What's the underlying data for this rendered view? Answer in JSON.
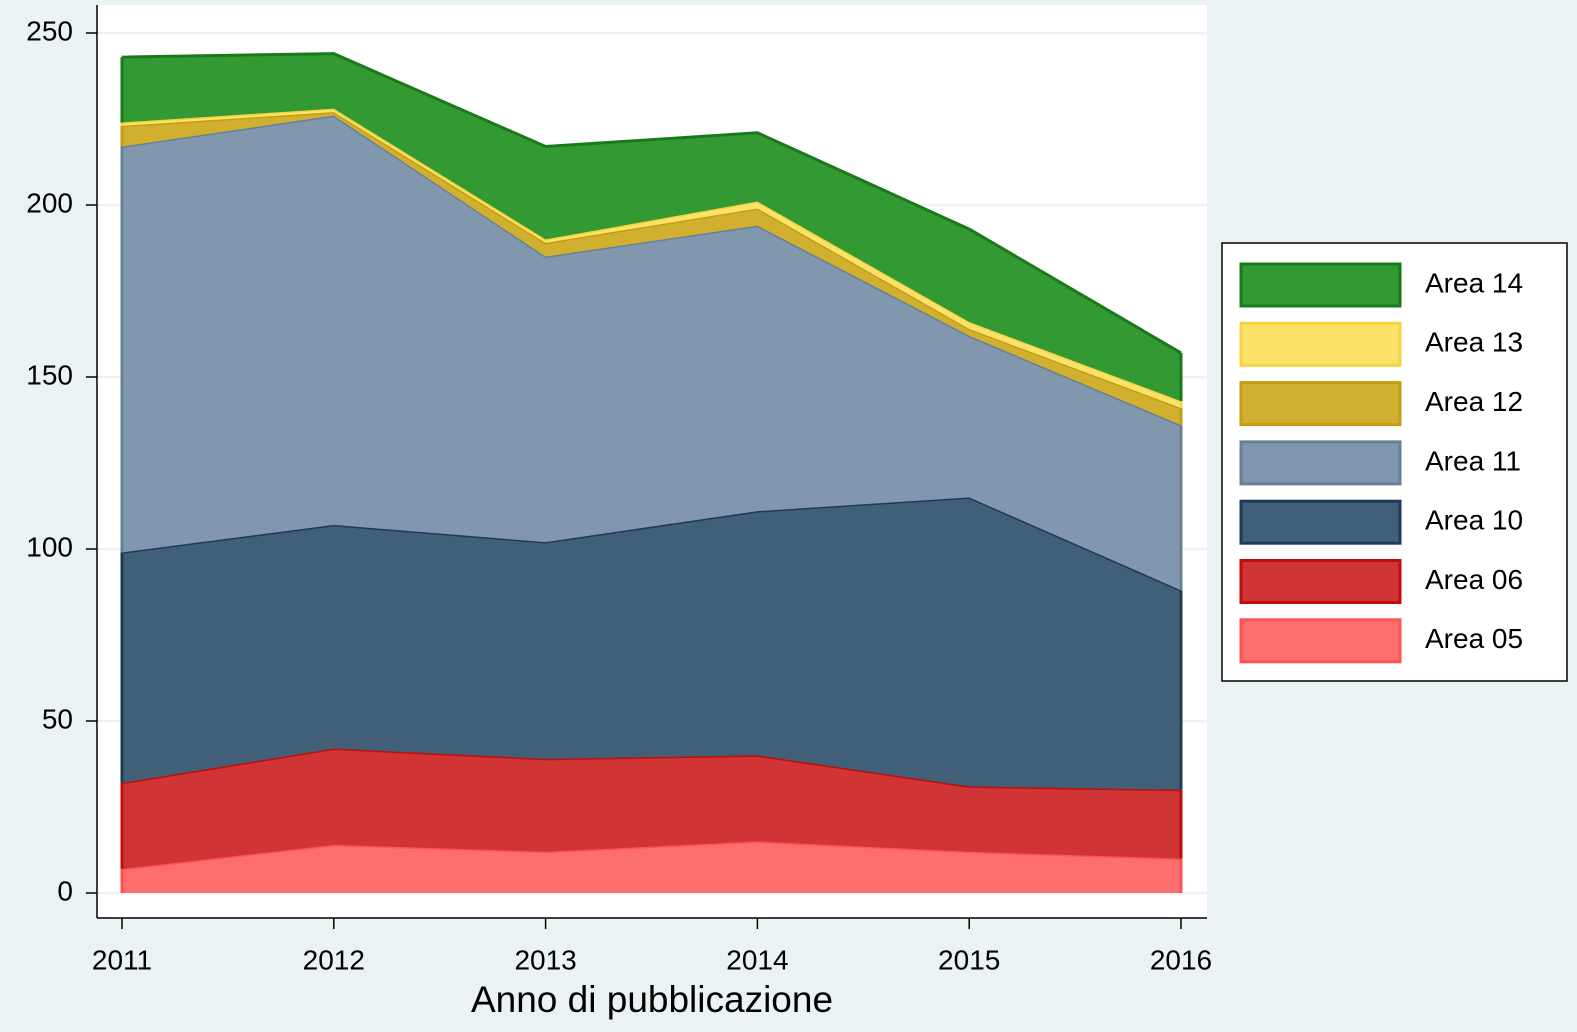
{
  "chart_data": {
    "type": "stacked_area",
    "x_label": "Anno di pubblicazione",
    "x": [
      2011,
      2012,
      2013,
      2014,
      2015,
      2016
    ],
    "xlim": [
      2011,
      2016
    ],
    "xticks": [
      2011,
      2012,
      2013,
      2014,
      2015,
      2016
    ],
    "ylim": [
      0,
      250
    ],
    "yticks": [
      0,
      50,
      100,
      150,
      200,
      250
    ],
    "grid": true,
    "legend": "right",
    "series": [
      {
        "name": "Area 05",
        "color": "#ff6e6e",
        "edge": "#ff5252",
        "values": [
          7,
          14,
          12,
          15,
          12,
          10
        ]
      },
      {
        "name": "Area 06",
        "color": "#d03434",
        "edge": "#c00e0e",
        "values": [
          25,
          28,
          27,
          25,
          19,
          20
        ]
      },
      {
        "name": "Area 10",
        "color": "#425f78",
        "edge": "#1e3a5a",
        "values": [
          67,
          65,
          63,
          71,
          84,
          58
        ]
      },
      {
        "name": "Area 11",
        "color": "#8097ae",
        "edge": "#66809a",
        "values": [
          118,
          119,
          83,
          83,
          47,
          48
        ]
      },
      {
        "name": "Area 12",
        "color": "#d1b030",
        "edge": "#c29e10",
        "values": [
          6,
          1,
          4,
          5,
          2,
          5
        ]
      },
      {
        "name": "Area 13",
        "color": "#fce16b",
        "edge": "#f5d442",
        "values": [
          1,
          1,
          1,
          2,
          2,
          2
        ]
      },
      {
        "name": "Area 14",
        "color": "#339933",
        "edge": "#1a7a1a",
        "values": [
          19,
          16,
          27,
          20,
          27,
          14
        ]
      }
    ]
  }
}
